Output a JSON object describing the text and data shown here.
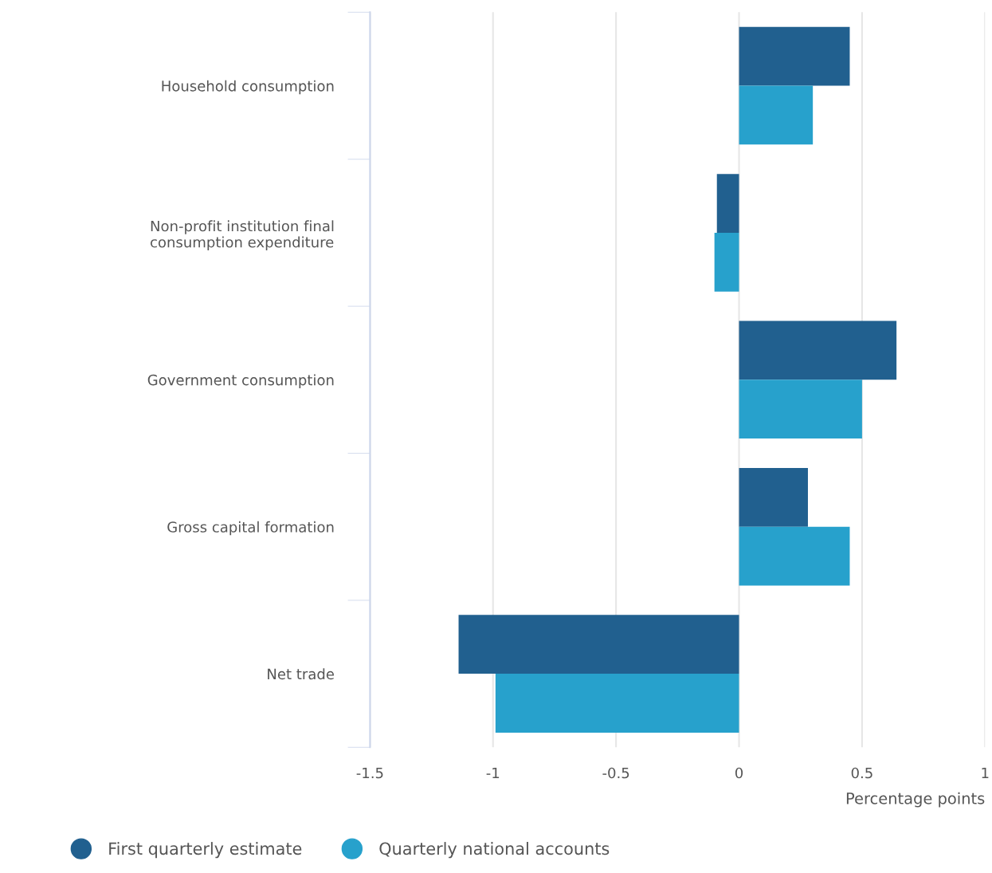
{
  "chart_data": {
    "type": "bar",
    "orientation": "horizontal",
    "xlabel": "Percentage points",
    "categories": [
      "Household consumption",
      "Non-profit institution final\nconsumption expenditure",
      "Government consumption",
      "Gross capital formation",
      "Net trade"
    ],
    "series": [
      {
        "name": "First quarterly estimate",
        "color": "#21608f",
        "values": [
          0.45,
          -0.09,
          0.64,
          0.28,
          -1.14
        ]
      },
      {
        "name": "Quarterly national accounts",
        "color": "#27a1cc",
        "values": [
          0.3,
          -0.1,
          0.5,
          0.45,
          -0.99
        ]
      }
    ],
    "xlim": [
      -1.5,
      1
    ],
    "xticks": [
      -1.5,
      -1,
      -0.5,
      0,
      0.5,
      1
    ],
    "grid": "x",
    "legend": "bottom",
    "marker": "circle"
  }
}
